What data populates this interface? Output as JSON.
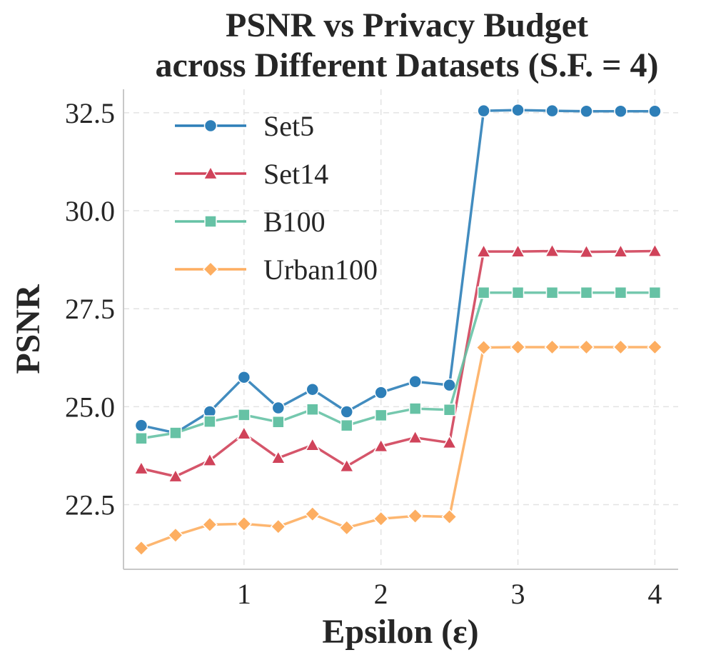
{
  "chart_data": {
    "type": "line",
    "title_line1": "PSNR vs Privacy Budget",
    "title_line2": "across Different Datasets (S.F. = 4)",
    "xlabel": "Epsilon (ε)",
    "ylabel": "PSNR",
    "xlim": [
      0.12,
      4.17
    ],
    "ylim": [
      20.85,
      33.1
    ],
    "xticks": [
      1,
      2,
      3,
      4
    ],
    "xtick_labels": [
      "1",
      "2",
      "3",
      "4"
    ],
    "yticks": [
      22.5,
      25.0,
      27.5,
      30.0,
      32.5
    ],
    "ytick_labels": [
      "22.5",
      "25.0",
      "27.5",
      "30.0",
      "32.5"
    ],
    "grid": true,
    "legend_position": "top-left",
    "x": [
      0.25,
      0.5,
      0.75,
      1.0,
      1.25,
      1.5,
      1.75,
      2.0,
      2.25,
      2.5,
      2.75,
      3.0,
      3.25,
      3.5,
      3.75,
      4.0
    ],
    "series": [
      {
        "name": "Set5",
        "color": "#2e7fb8",
        "marker": "circle",
        "values": [
          24.52,
          24.33,
          24.87,
          25.75,
          24.97,
          25.44,
          24.87,
          25.36,
          25.64,
          25.55,
          32.55,
          32.57,
          32.55,
          32.54,
          32.54,
          32.54
        ]
      },
      {
        "name": "Set14",
        "color": "#d0435a",
        "marker": "triangle",
        "values": [
          23.42,
          23.22,
          23.63,
          24.31,
          23.69,
          24.02,
          23.48,
          23.99,
          24.21,
          24.08,
          28.96,
          28.96,
          28.97,
          28.95,
          28.96,
          28.97
        ]
      },
      {
        "name": "B100",
        "color": "#66c2a5",
        "marker": "square",
        "values": [
          24.19,
          24.33,
          24.62,
          24.79,
          24.61,
          24.93,
          24.52,
          24.78,
          24.95,
          24.92,
          27.91,
          27.91,
          27.91,
          27.91,
          27.91,
          27.91
        ]
      },
      {
        "name": "Urban100",
        "color": "#fdae61",
        "marker": "diamond",
        "values": [
          21.39,
          21.72,
          21.99,
          22.01,
          21.94,
          22.26,
          21.91,
          22.14,
          22.21,
          22.19,
          26.51,
          26.52,
          26.52,
          26.52,
          26.52,
          26.52
        ]
      }
    ]
  }
}
